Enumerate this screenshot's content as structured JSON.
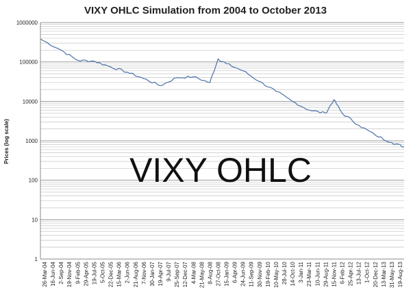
{
  "chart_data": {
    "type": "line",
    "title": "VIXY OHLC Simulation from 2004 to October 2013",
    "ylabel": "Prices (log scale)",
    "xlabel": "",
    "overlay_text": "VIXY OHLC",
    "y_scale": "log",
    "ylim": [
      1,
      1000000
    ],
    "grid": true,
    "legend": "none",
    "line_color": "#4a72a8",
    "y_ticks": [
      "1",
      "10",
      "100",
      "1000",
      "10000",
      "100000",
      "1000000"
    ],
    "x_tick_labels": [
      "26-Mar-04",
      "16-Jun-04",
      "2-Sep-04",
      "19-Nov-04",
      "9-Feb-05",
      "29-Apr-05",
      "19-Jul-05",
      "5-Oct-05",
      "22-Dec-05",
      "15-Mar-06",
      "2-Jun-06",
      "21-Aug-06",
      "7-Nov-06",
      "30-Jan-07",
      "19-Apr-07",
      "9-Jul-07",
      "25-Sep-07",
      "12-Dec-07",
      "4-Mar-08",
      "21-May-08",
      "8-Aug-08",
      "27-Oct-08",
      "15-Jan-09",
      "6-Apr-09",
      "24-Jun-09",
      "11-Sep-09",
      "30-Nov-09",
      "19-Feb-10",
      "10-May-10",
      "28-Jul-10",
      "14-Oct-10",
      "3-Jan-11",
      "23-Mar-11",
      "10-Jun-11",
      "29-Aug-11",
      "15-Nov-11",
      "6-Feb-12",
      "25-Apr-12",
      "13-Jul-12",
      "1-Oct-12",
      "20-Dec-12",
      "13-Mar-13",
      "31-May-13",
      "19-Aug-13"
    ],
    "series": [
      {
        "x": [
          "26-Mar-04",
          "2-Sep-04",
          "9-Feb-05",
          "19-Jul-05",
          "22-Dec-05",
          "2-Jun-06",
          "7-Nov-06",
          "19-Apr-07",
          "25-Sep-07",
          "4-Mar-08",
          "8-Aug-08",
          "27-Oct-08",
          "15-Jan-09",
          "24-Jun-09",
          "30-Nov-09",
          "10-May-10",
          "14-Oct-10",
          "23-Mar-11",
          "29-Aug-11",
          "15-Nov-11",
          "6-Feb-12",
          "13-Jul-12",
          "20-Dec-12",
          "31-May-13",
          "19-Aug-13"
        ],
        "values": [
          380000,
          200000,
          110000,
          105000,
          75000,
          55000,
          38000,
          25000,
          40000,
          42000,
          30000,
          120000,
          90000,
          60000,
          32000,
          18000,
          10000,
          6000,
          5000,
          11000,
          5000,
          2500,
          1400,
          900,
          700
        ]
      }
    ]
  }
}
